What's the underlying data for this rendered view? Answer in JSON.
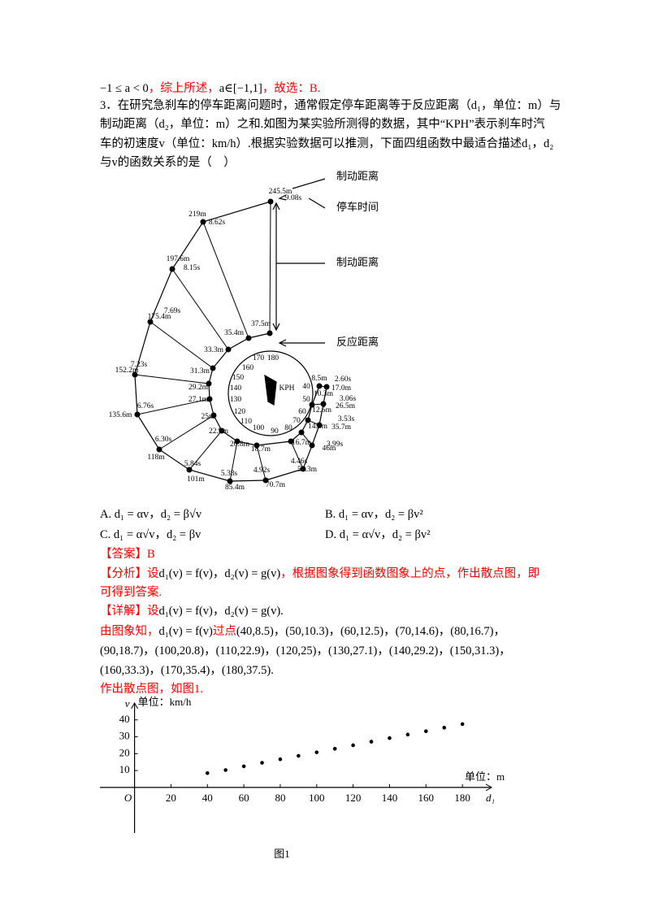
{
  "intro": [
    {
      "text": "−1 ≤ a < 0",
      "color": "#000000"
    },
    {
      "text": "，综上所述，",
      "color": "#ff0000"
    },
    {
      "text": "a∈[−1,1]",
      "color": "#000000"
    },
    {
      "text": "，故选：B.",
      "color": "#ff0000"
    }
  ],
  "question": [
    "3．在研究急刹车的停车距离问题时，通常假定停车距离等于反应距离（d₁，单位：m）与",
    "制动距离（d₂，单位：m）之和.如图为某实验所测得的数据，其中“KPH”表示刹车时汽",
    "车的初速度v（单位：km/h）.根据实验数据可以推测，下面四组函数中最适合描述d₁，d₂",
    "与v的函数关系的是（　）"
  ],
  "figure": {
    "outer_distances": [
      "245.5m",
      "219m",
      "197.6m",
      "175.4m",
      "152.2m",
      "135.6m",
      "118m",
      "101m",
      "85.4m",
      "70.7m",
      "52.3m",
      "46m",
      "35.7m",
      "26.5m",
      "17.0m"
    ],
    "times": [
      "9.08s",
      "8.62s",
      "8.15s",
      "7.69s",
      "7.23s",
      "6.76s",
      "6.30s",
      "5.84s",
      "5.38s",
      "4.92s",
      "4.46s",
      "3.99s",
      "3.53s",
      "3.06s",
      "2.60s"
    ],
    "reaction_distances": [
      "37.5m",
      "35.4m",
      "33.3m",
      "31.3m",
      "29.2m",
      "27.1m",
      "25m",
      "22.9m",
      "20.8m",
      "18.7m",
      "16.7m",
      "14.6m",
      "12.5m",
      "10.3m",
      "8.5m"
    ],
    "speeds": [
      "180",
      "170",
      "160",
      "150",
      "140",
      "130",
      "120",
      "110",
      "100",
      "90",
      "80",
      "70",
      "60",
      "50",
      "40"
    ],
    "center": "KPH",
    "annotations": [
      "制动距离",
      "停车时间",
      "制动距离",
      "反应距离"
    ]
  },
  "options": [
    "A.   d₁ = αv，d₂ = β√v",
    "B.   d₁ = αv，d₂ = βv²",
    "C.   d₁ = α√v，d₂ = βv",
    "D.   d₁ = α√v，d₂ = βv²"
  ],
  "solution": [
    [
      {
        "text": "【答案】B",
        "color": "#ff0000"
      }
    ],
    [
      {
        "text": "【分析】设",
        "color": "#ff0000"
      },
      {
        "text": "d₁(v) = f(v)，d₂(v) = g(v)",
        "color": "#000000"
      },
      {
        "text": "，根据图象得到函数图象上的点，作出散点图，即",
        "color": "#ff0000"
      }
    ],
    [
      {
        "text": "可得到答案.",
        "color": "#ff0000"
      }
    ],
    [
      {
        "text": "【详解】设",
        "color": "#ff0000"
      },
      {
        "text": "d₁(v) = f(v)，d₂(v) = g(v).",
        "color": "#000000"
      }
    ],
    [
      {
        "text": "由图象知，",
        "color": "#ff0000"
      },
      {
        "text": "d₁(v) = f(v)",
        "color": "#000000"
      },
      {
        "text": "过点",
        "color": "#ff0000"
      },
      {
        "text": "(40,8.5)，(50,10.3)，(60,12.5)，(70,14.6)，(80,16.7)，",
        "color": "#000000"
      }
    ],
    [
      {
        "text": "(90,18.7)，(100,20.8)，(110,22.9)，(120,25)，(130,27.1)，(140,29.2)，(150,31.3)，",
        "color": "#000000"
      }
    ],
    [
      {
        "text": "(160,33.3)，(170,35.4)，(180,37.5).",
        "color": "#000000"
      }
    ],
    [
      {
        "text": "作出散点图，如图1.",
        "color": "#ff0000"
      }
    ]
  ],
  "chart_data": {
    "type": "scatter",
    "y_symbol": "v",
    "y_label": "单位：km/h",
    "x_label": "单位：m",
    "x_symbol": "d₁",
    "origin_label": "O",
    "caption": "图1",
    "x": [
      40,
      50,
      60,
      70,
      80,
      90,
      100,
      110,
      120,
      130,
      140,
      150,
      160,
      170,
      180
    ],
    "values": [
      8.5,
      10.3,
      12.5,
      14.6,
      16.7,
      18.7,
      20.8,
      22.9,
      25,
      27.1,
      29.2,
      31.3,
      33.3,
      35.4,
      37.5
    ],
    "color": "#000000",
    "xlim": [
      -19,
      196
    ],
    "ylim": [
      -27,
      50
    ],
    "xticks": [
      20,
      40,
      60,
      80,
      100,
      120,
      140,
      160,
      180
    ],
    "yticks": [
      10,
      20,
      30,
      40
    ]
  }
}
